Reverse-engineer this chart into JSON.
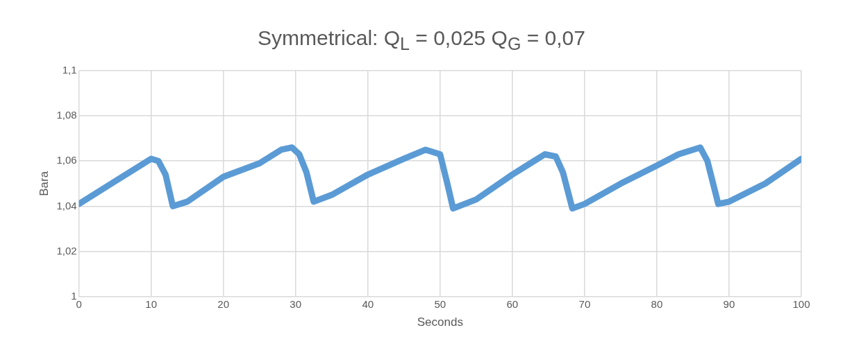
{
  "chart_data": {
    "type": "line",
    "title": "Symmetrical: Q$_{L}$ = 0,025  Q$_{G}$ = 0,07",
    "xlabel": "Seconds",
    "ylabel": "Bara",
    "x": [
      0,
      5,
      10,
      11,
      12,
      13,
      15,
      20,
      25,
      28,
      29.5,
      30.5,
      31.5,
      32.5,
      35,
      40,
      45,
      48,
      50,
      51,
      51.8,
      55,
      60,
      64.5,
      66,
      67,
      68.3,
      70,
      75,
      80,
      83,
      86,
      87,
      88.5,
      90,
      95,
      100
    ],
    "series": [
      {
        "color": "#5b9bd5",
        "values": [
          1.041,
          1.051,
          1.061,
          1.06,
          1.054,
          1.04,
          1.042,
          1.053,
          1.059,
          1.065,
          1.066,
          1.063,
          1.055,
          1.042,
          1.045,
          1.054,
          1.061,
          1.065,
          1.063,
          1.05,
          1.039,
          1.043,
          1.054,
          1.063,
          1.062,
          1.055,
          1.039,
          1.041,
          1.05,
          1.058,
          1.063,
          1.066,
          1.06,
          1.041,
          1.042,
          1.05,
          1.061
        ]
      }
    ],
    "xlim": [
      0,
      100
    ],
    "xticks": [
      0,
      10,
      20,
      30,
      40,
      50,
      60,
      70,
      80,
      90,
      100
    ],
    "ylim": [
      1,
      1.1
    ],
    "yticks": [
      1,
      {
        "value": 1.02,
        "label": "1,02"
      },
      {
        "value": 1.04,
        "label": "1,04"
      },
      {
        "value": 1.06,
        "label": "1,06"
      },
      {
        "value": 1.08,
        "label": "1,08"
      },
      {
        "value": 1.1,
        "label": "1,1"
      }
    ],
    "grid": true,
    "legend": false,
    "marker": "none",
    "line_style": "solid"
  }
}
